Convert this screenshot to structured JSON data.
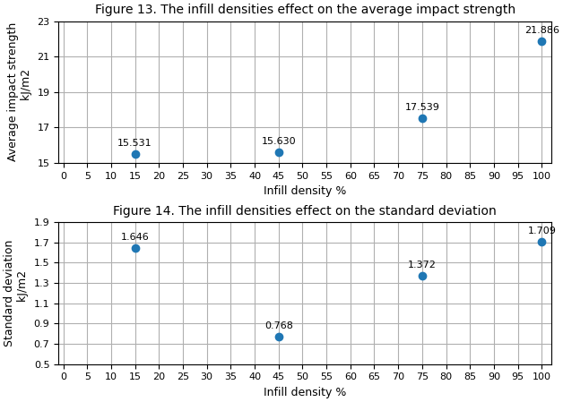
{
  "chart_data": [
    {
      "type": "scatter",
      "title": "Figure 13. The infill densities effect on the average impact strength",
      "x_label": "Infill density %",
      "y_label": "Average impact strength\n    kJ/m2",
      "x": [
        15,
        45,
        75,
        100
      ],
      "values": [
        15.531,
        15.63,
        17.539,
        21.886
      ],
      "value_labels": [
        "15.531",
        "15.630",
        "17.539",
        "21.886"
      ],
      "data_labels": true,
      "xlim": [
        -1,
        102
      ],
      "ylim": [
        15,
        23
      ],
      "xticks": [
        0,
        5,
        10,
        15,
        20,
        25,
        30,
        35,
        40,
        45,
        50,
        55,
        60,
        65,
        70,
        75,
        80,
        85,
        90,
        95,
        100
      ],
      "yticks": [
        15,
        17,
        19,
        21,
        23
      ],
      "grid": true
    },
    {
      "type": "scatter",
      "title": "Figure 14. The infill densities effect on the standard deviation",
      "x_label": "Infill density %",
      "y_label": "Standard deviation\n    kJ/m2",
      "x": [
        15,
        45,
        75,
        100
      ],
      "values": [
        1.646,
        0.768,
        1.372,
        1.709
      ],
      "value_labels": [
        "1.646",
        "0.768",
        "1.372",
        "1.709"
      ],
      "data_labels": true,
      "xlim": [
        -1,
        102
      ],
      "ylim": [
        0.5,
        1.9
      ],
      "xticks": [
        0,
        5,
        10,
        15,
        20,
        25,
        30,
        35,
        40,
        45,
        50,
        55,
        60,
        65,
        70,
        75,
        80,
        85,
        90,
        95,
        100
      ],
      "yticks": [
        0.5,
        0.7,
        0.9,
        1.1,
        1.3,
        1.5,
        1.7,
        1.9
      ],
      "grid": true
    }
  ]
}
